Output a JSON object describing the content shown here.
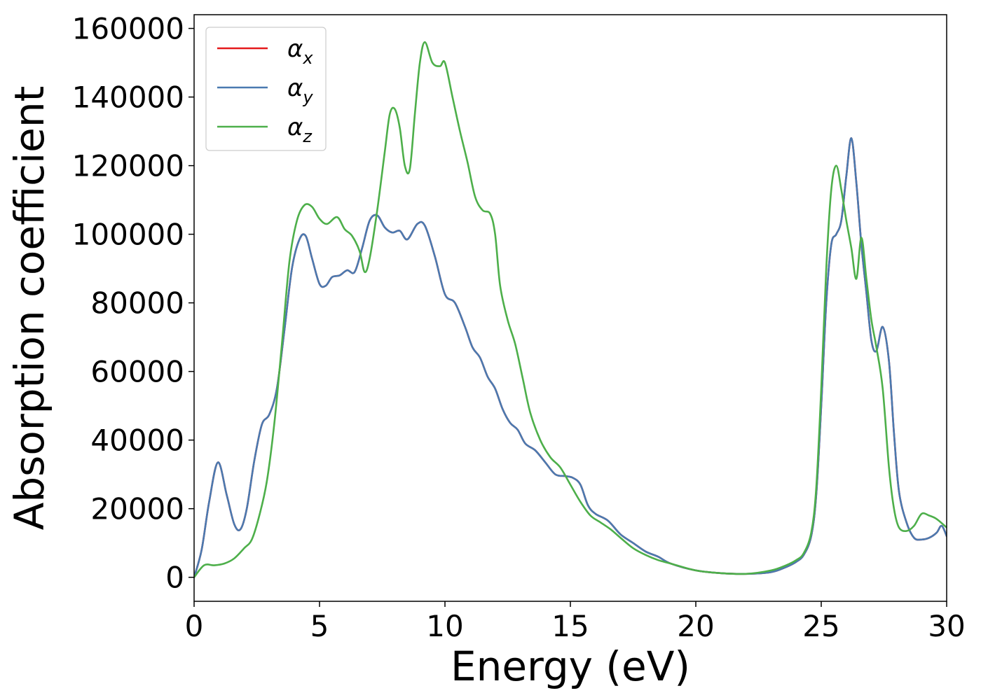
{
  "chart_data": {
    "type": "line",
    "title": "",
    "xlabel": "Energy (eV)",
    "ylabel": "Absorption coefficient",
    "xlim": [
      0,
      30
    ],
    "ylim": [
      -7000,
      164000
    ],
    "xticks": [
      0,
      5,
      10,
      15,
      20,
      25,
      30
    ],
    "yticks": [
      0,
      20000,
      40000,
      60000,
      80000,
      100000,
      120000,
      140000,
      160000
    ],
    "grid": false,
    "legend_position": "top-left",
    "series": [
      {
        "name": "α_x",
        "label_base": "α",
        "label_sub": "x",
        "color": "#e41a1c",
        "x": [
          0,
          0.3,
          0.6,
          0.95,
          1.3,
          1.6,
          1.85,
          2.1,
          2.4,
          2.7,
          3.0,
          3.3,
          3.6,
          3.9,
          4.2,
          4.45,
          4.7,
          5.0,
          5.25,
          5.5,
          5.8,
          6.1,
          6.4,
          6.7,
          7.0,
          7.3,
          7.6,
          7.9,
          8.2,
          8.5,
          8.9,
          9.2,
          9.6,
          10.0,
          10.4,
          10.8,
          11.1,
          11.4,
          11.7,
          12.0,
          12.3,
          12.6,
          12.9,
          13.2,
          13.6,
          14.0,
          14.4,
          14.8,
          15.1,
          15.4,
          15.7,
          16.0,
          16.5,
          17.0,
          17.5,
          18.0,
          18.5,
          19.0,
          20.0,
          21.0,
          22.0,
          23.0,
          23.6,
          24.0,
          24.3,
          24.6,
          24.8,
          25.0,
          25.2,
          25.4,
          25.6,
          25.8,
          26.0,
          26.2,
          26.4,
          26.6,
          26.8,
          27.0,
          27.2,
          27.45,
          27.7,
          27.9,
          28.1,
          28.4,
          28.7,
          29.0,
          29.3,
          29.6,
          29.8,
          30.0
        ],
        "y": [
          0,
          8000,
          22000,
          33500,
          24000,
          15500,
          14000,
          20000,
          34000,
          44500,
          47500,
          55000,
          72000,
          90000,
          98500,
          99500,
          93000,
          85500,
          85000,
          87500,
          88000,
          89500,
          89000,
          96000,
          104000,
          105500,
          102000,
          100500,
          101000,
          98500,
          103000,
          102500,
          93500,
          82500,
          80000,
          73000,
          67000,
          64000,
          58500,
          55000,
          49000,
          45000,
          43000,
          39000,
          37000,
          33500,
          30000,
          29500,
          29000,
          27000,
          21000,
          18500,
          16500,
          12500,
          10000,
          7500,
          6000,
          4000,
          2000,
          1200,
          1000,
          1500,
          3000,
          4500,
          6500,
          12000,
          24000,
          50000,
          80000,
          97000,
          100000,
          104000,
          117000,
          128000,
          115000,
          97000,
          83000,
          69000,
          66000,
          73000,
          63000,
          42000,
          25000,
          16000,
          11500,
          11000,
          11500,
          13000,
          15000,
          12000
        ]
      },
      {
        "name": "α_y",
        "label_base": "α",
        "label_sub": "y",
        "color": "#4a7ab0",
        "x": [
          0,
          0.3,
          0.6,
          0.95,
          1.3,
          1.6,
          1.85,
          2.1,
          2.4,
          2.7,
          3.0,
          3.3,
          3.6,
          3.9,
          4.2,
          4.45,
          4.7,
          5.0,
          5.25,
          5.5,
          5.8,
          6.1,
          6.4,
          6.7,
          7.0,
          7.3,
          7.6,
          7.9,
          8.2,
          8.5,
          8.9,
          9.2,
          9.6,
          10.0,
          10.4,
          10.8,
          11.1,
          11.4,
          11.7,
          12.0,
          12.3,
          12.6,
          12.9,
          13.2,
          13.6,
          14.0,
          14.4,
          14.8,
          15.1,
          15.4,
          15.7,
          16.0,
          16.5,
          17.0,
          17.5,
          18.0,
          18.5,
          19.0,
          20.0,
          21.0,
          22.0,
          23.0,
          23.6,
          24.0,
          24.3,
          24.6,
          24.8,
          25.0,
          25.2,
          25.4,
          25.6,
          25.8,
          26.0,
          26.2,
          26.4,
          26.6,
          26.8,
          27.0,
          27.2,
          27.45,
          27.7,
          27.9,
          28.1,
          28.4,
          28.7,
          29.0,
          29.3,
          29.6,
          29.8,
          30.0
        ],
        "y": [
          0,
          8000,
          22000,
          33500,
          24000,
          15500,
          14000,
          20000,
          34000,
          44500,
          47500,
          55000,
          72000,
          90000,
          98500,
          99500,
          93000,
          85500,
          85000,
          87500,
          88000,
          89500,
          89000,
          96000,
          104000,
          105500,
          102000,
          100500,
          101000,
          98500,
          103000,
          102500,
          93500,
          82500,
          80000,
          73000,
          67000,
          64000,
          58500,
          55000,
          49000,
          45000,
          43000,
          39000,
          37000,
          33500,
          30000,
          29500,
          29000,
          27000,
          21000,
          18500,
          16500,
          12500,
          10000,
          7500,
          6000,
          4000,
          2000,
          1200,
          1000,
          1500,
          3000,
          4500,
          6500,
          12000,
          24000,
          50000,
          80000,
          97000,
          100000,
          104000,
          117000,
          128000,
          115000,
          97000,
          83000,
          69000,
          66000,
          73000,
          63000,
          42000,
          25000,
          16000,
          11500,
          11000,
          11500,
          13000,
          15000,
          12000
        ]
      },
      {
        "name": "α_z",
        "label_base": "α",
        "label_sub": "z",
        "color": "#4daf4a",
        "x": [
          0,
          0.4,
          0.8,
          1.2,
          1.6,
          2.0,
          2.3,
          2.6,
          2.9,
          3.2,
          3.5,
          3.8,
          4.1,
          4.4,
          4.7,
          5.0,
          5.3,
          5.7,
          6.0,
          6.3,
          6.6,
          6.8,
          7.0,
          7.3,
          7.6,
          7.8,
          8.0,
          8.2,
          8.4,
          8.6,
          8.8,
          9.0,
          9.2,
          9.5,
          9.8,
          10.0,
          10.3,
          10.6,
          10.9,
          11.2,
          11.5,
          11.8,
          12.0,
          12.2,
          12.5,
          12.8,
          13.1,
          13.4,
          13.8,
          14.2,
          14.6,
          15.0,
          15.4,
          15.8,
          16.2,
          16.6,
          17.0,
          17.5,
          18.0,
          18.5,
          19.0,
          20.0,
          21.0,
          22.0,
          23.0,
          23.6,
          24.0,
          24.3,
          24.6,
          24.8,
          25.0,
          25.2,
          25.4,
          25.6,
          25.8,
          26.0,
          26.2,
          26.4,
          26.6,
          26.8,
          27.0,
          27.2,
          27.45,
          27.7,
          27.9,
          28.1,
          28.4,
          28.7,
          29.0,
          29.3,
          29.6,
          30.0
        ],
        "y": [
          0,
          3500,
          3500,
          4000,
          5500,
          8500,
          11000,
          18000,
          28000,
          45000,
          68000,
          92000,
          104000,
          108500,
          108000,
          104500,
          103000,
          105000,
          101500,
          99500,
          95000,
          89000,
          93000,
          107000,
          124000,
          135000,
          136500,
          131000,
          120000,
          119000,
          135000,
          150000,
          156000,
          150000,
          149000,
          150000,
          140000,
          130000,
          121000,
          111000,
          107000,
          106000,
          100000,
          85000,
          75000,
          68000,
          58000,
          48000,
          40000,
          35000,
          32000,
          27000,
          22000,
          18000,
          16000,
          14000,
          11500,
          8500,
          6500,
          5000,
          4000,
          2000,
          1200,
          1000,
          2000,
          3500,
          5000,
          7000,
          13000,
          26000,
          55000,
          90000,
          113000,
          120000,
          113000,
          104000,
          96000,
          87000,
          99000,
          87000,
          75000,
          67000,
          55000,
          32000,
          20000,
          14500,
          13500,
          15000,
          18500,
          18000,
          17000,
          14500
        ]
      }
    ]
  }
}
